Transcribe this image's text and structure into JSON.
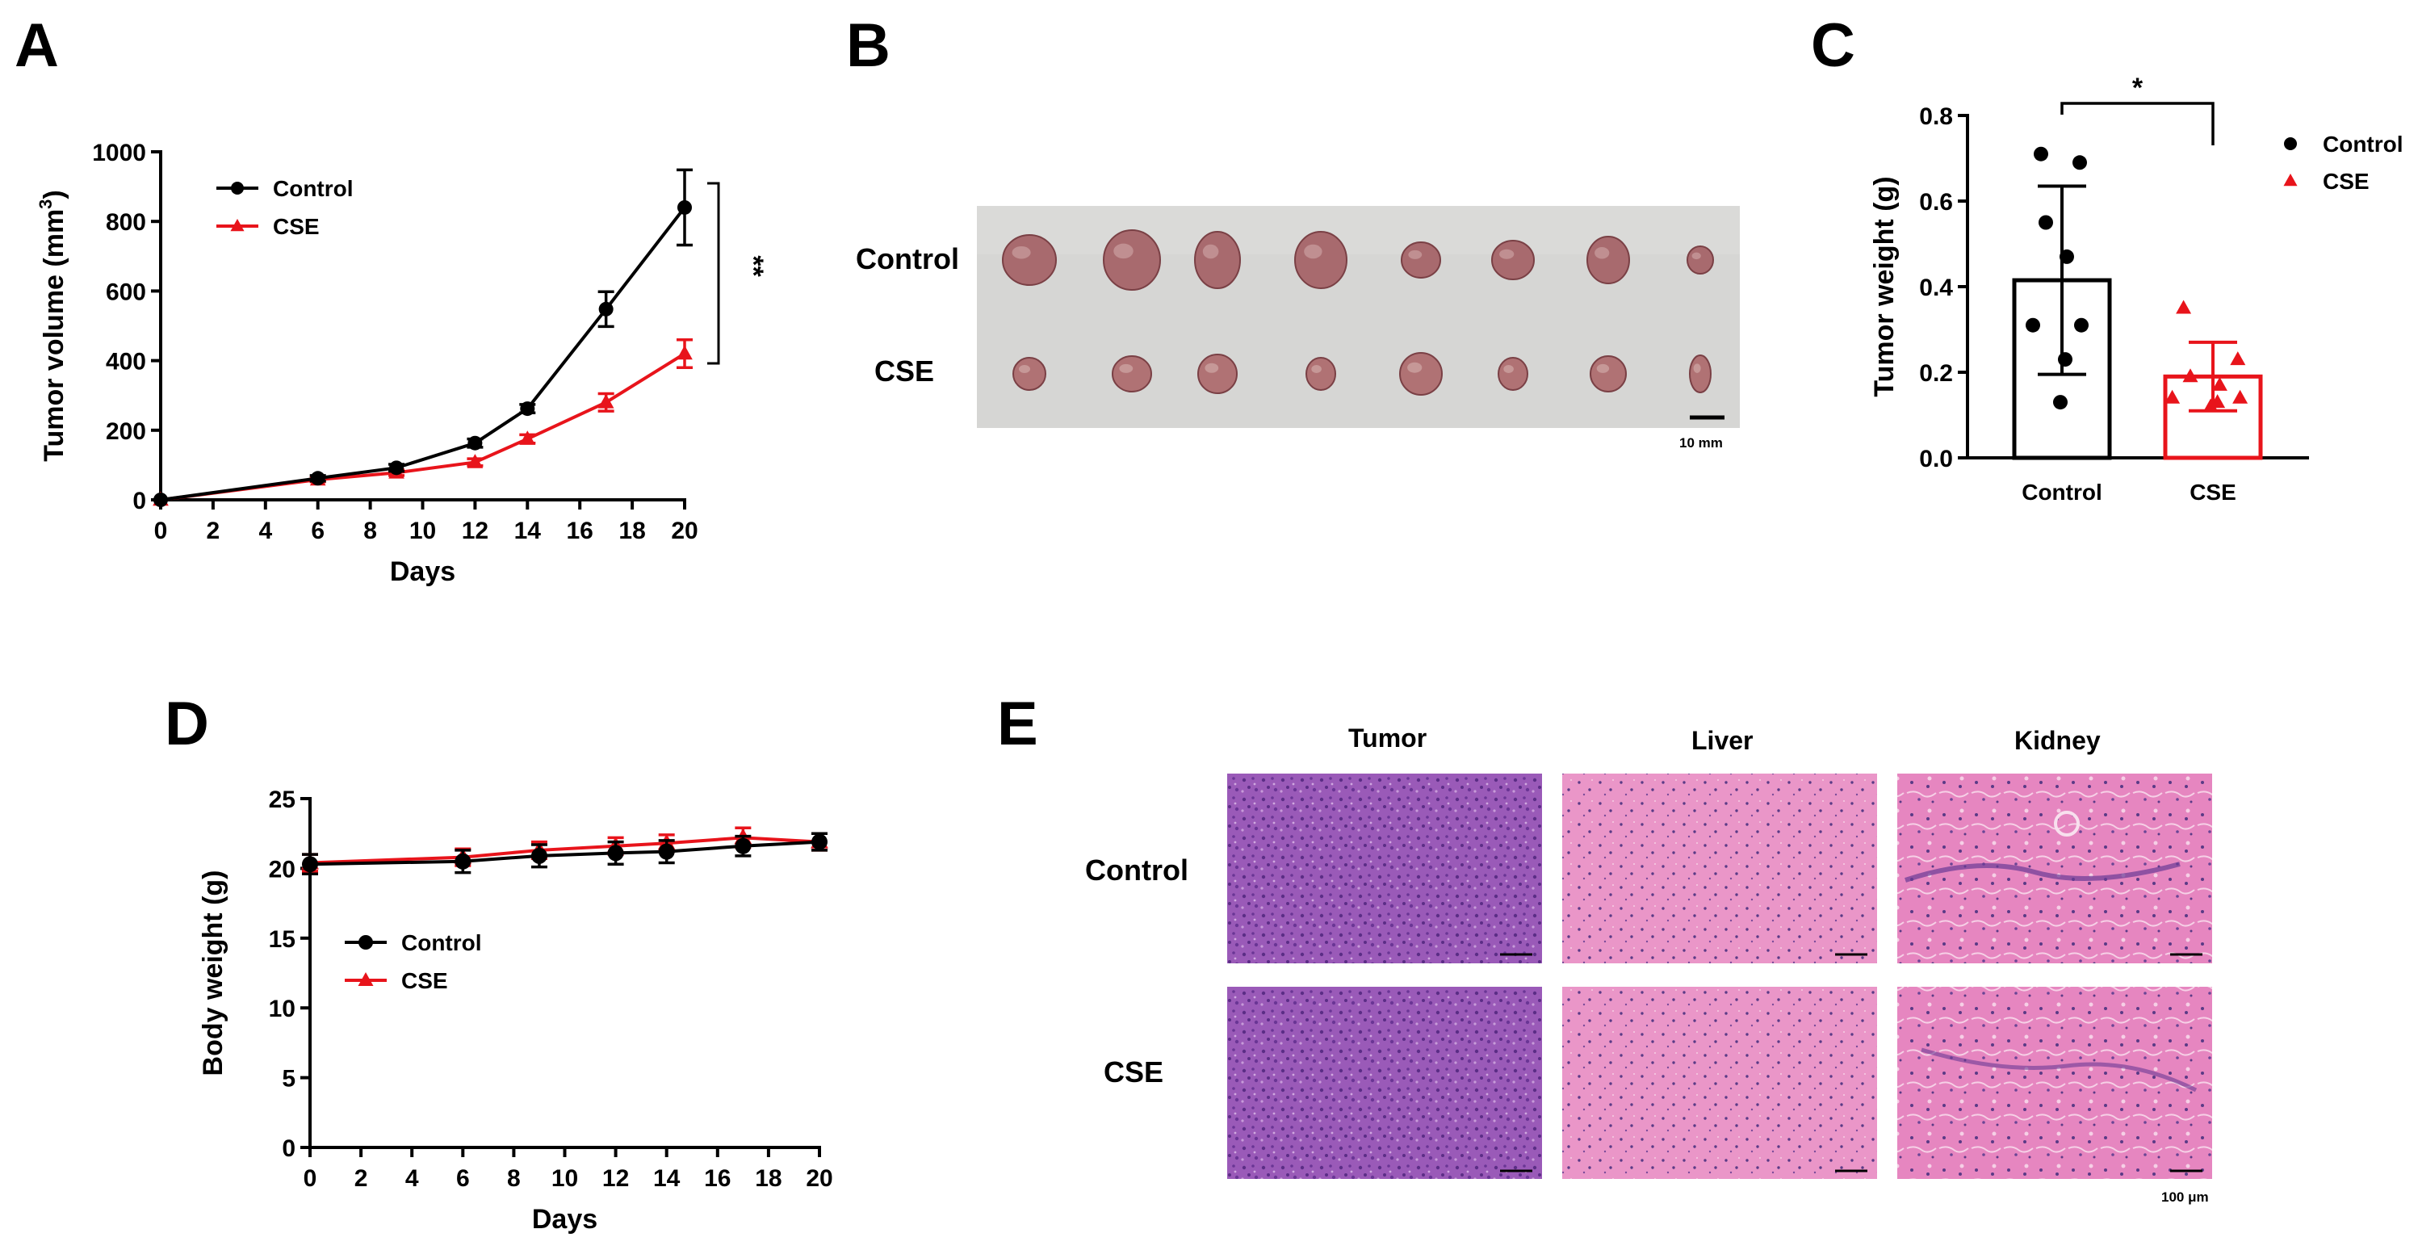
{
  "panels": {
    "A": {
      "letter": "A"
    },
    "B": {
      "letter": "B",
      "rows": [
        "Control",
        "CSE"
      ],
      "scale_bar_label": "10 mm"
    },
    "C": {
      "letter": "C"
    },
    "D": {
      "letter": "D"
    },
    "E": {
      "letter": "E",
      "columns": [
        "Tumor",
        "Liver",
        "Kidney"
      ],
      "rows": [
        "Control",
        "CSE"
      ],
      "scale_bar_label": "100 μm"
    }
  },
  "colors": {
    "control": "#000000",
    "cse": "#e8141b",
    "photo_bg": "#d6d6d4",
    "tissue_tumor": "#9a5ab8",
    "tissue_liver": "#e88fc4",
    "tissue_kidney": "#e27fbb"
  },
  "chart_data": [
    {
      "id": "A",
      "type": "line",
      "xlabel": "Days",
      "ylabel": "Tumor volume (mm³)",
      "ylabel_main": "Tumor volume (mm",
      "ylabel_sup": "3",
      "ylabel_end": ")",
      "xlim": [
        0,
        20
      ],
      "ylim": [
        0,
        1000
      ],
      "xticks": [
        "0",
        "2",
        "4",
        "6",
        "8",
        "10",
        "12",
        "14",
        "16",
        "18",
        "20"
      ],
      "yticks": [
        "0",
        "200",
        "400",
        "600",
        "800",
        "1000"
      ],
      "legend": [
        "Control",
        "CSE"
      ],
      "significance": "**",
      "series": [
        {
          "name": "Control",
          "marker": "circle",
          "x": [
            0,
            6,
            9,
            12,
            14,
            17,
            20
          ],
          "values": [
            0,
            62,
            92,
            163,
            262,
            548,
            840
          ],
          "err": [
            0,
            8,
            10,
            12,
            12,
            50,
            108
          ]
        },
        {
          "name": "CSE",
          "marker": "triangle",
          "x": [
            0,
            6,
            9,
            12,
            14,
            17,
            20
          ],
          "values": [
            0,
            58,
            78,
            108,
            175,
            280,
            420
          ],
          "err": [
            0,
            6,
            8,
            10,
            12,
            25,
            40
          ]
        }
      ]
    },
    {
      "id": "C",
      "type": "bar",
      "ylabel": "Tumor weight (g)",
      "ylim": [
        0,
        0.8
      ],
      "yticks": [
        "0.0",
        "0.2",
        "0.4",
        "0.6",
        "0.8"
      ],
      "categories": [
        "Control",
        "CSE"
      ],
      "legend": [
        "Control",
        "CSE"
      ],
      "significance": "*",
      "series": [
        {
          "name": "Control",
          "mean": 0.415,
          "sd": 0.22,
          "points": [
            0.71,
            0.69,
            0.55,
            0.47,
            0.31,
            0.31,
            0.23,
            0.13
          ]
        },
        {
          "name": "CSE",
          "mean": 0.19,
          "sd": 0.08,
          "points": [
            0.35,
            0.23,
            0.19,
            0.17,
            0.14,
            0.14,
            0.13,
            0.12
          ]
        }
      ]
    },
    {
      "id": "D",
      "type": "line",
      "xlabel": "Days",
      "ylabel": "Body weight (g)",
      "xlim": [
        0,
        20
      ],
      "ylim": [
        0,
        25
      ],
      "xticks": [
        "0",
        "2",
        "4",
        "6",
        "8",
        "10",
        "12",
        "14",
        "16",
        "18",
        "20"
      ],
      "yticks": [
        "0",
        "5",
        "10",
        "15",
        "20",
        "25"
      ],
      "legend": [
        "Control",
        "CSE"
      ],
      "series": [
        {
          "name": "Control",
          "marker": "circle",
          "x": [
            0,
            6,
            9,
            12,
            14,
            17,
            20
          ],
          "values": [
            20.3,
            20.5,
            20.9,
            21.1,
            21.2,
            21.6,
            21.9
          ],
          "err": [
            0.7,
            0.8,
            0.8,
            0.8,
            0.8,
            0.7,
            0.6
          ]
        },
        {
          "name": "CSE",
          "marker": "triangle",
          "x": [
            0,
            6,
            9,
            12,
            14,
            17,
            20
          ],
          "values": [
            20.4,
            20.8,
            21.3,
            21.6,
            21.8,
            22.2,
            21.9
          ],
          "err": [
            0.6,
            0.6,
            0.6,
            0.6,
            0.6,
            0.7,
            0.6
          ]
        }
      ]
    }
  ]
}
